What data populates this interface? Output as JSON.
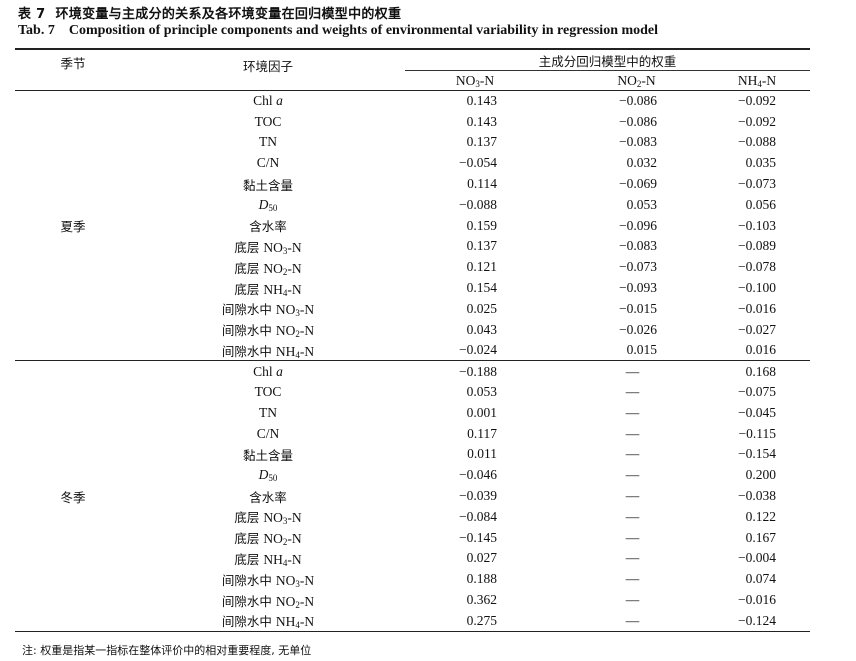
{
  "title_cn": {
    "number": "表 7",
    "text": "环境变量与主成分的关系及各环境变量在回归模型中的权重"
  },
  "title_en": {
    "number": "Tab. 7",
    "text": "Composition of principle components and weights of environmental variability in regression model"
  },
  "header": {
    "season": "季节",
    "factor": "环境因子",
    "group": "主成分回归模型中的权重",
    "columns": [
      [
        {
          "t": "NO"
        },
        {
          "sub": "3"
        },
        {
          "t": "-N"
        }
      ],
      [
        {
          "t": "NO"
        },
        {
          "sub": "2"
        },
        {
          "t": "-N"
        }
      ],
      [
        {
          "t": "NH"
        },
        {
          "sub": "4"
        },
        {
          "t": "-N"
        }
      ]
    ]
  },
  "groups": [
    {
      "season": "夏季",
      "rows": [
        {
          "factor": [
            {
              "t": "Chl "
            },
            {
              "i": "a"
            }
          ],
          "values": [
            "0.143",
            "−0.086",
            "−0.092"
          ]
        },
        {
          "factor": [
            {
              "t": "TOC"
            }
          ],
          "values": [
            "0.143",
            "−0.086",
            "−0.092"
          ]
        },
        {
          "factor": [
            {
              "t": "TN"
            }
          ],
          "values": [
            "0.137",
            "−0.083",
            "−0.088"
          ]
        },
        {
          "factor": [
            {
              "t": "C/N"
            }
          ],
          "values": [
            "−0.054",
            "0.032",
            "0.035"
          ]
        },
        {
          "factor": [
            {
              "cn": "黏土含量"
            }
          ],
          "values": [
            "0.114",
            "−0.069",
            "−0.073"
          ]
        },
        {
          "factor": [
            {
              "i": "D"
            },
            {
              "sub": "50"
            }
          ],
          "values": [
            "−0.088",
            "0.053",
            "0.056"
          ]
        },
        {
          "factor": [
            {
              "cn": "含水率"
            }
          ],
          "values": [
            "0.159",
            "−0.096",
            "−0.103"
          ]
        },
        {
          "factor": [
            {
              "cn": "底层 "
            },
            {
              "t": "NO"
            },
            {
              "sub": "3"
            },
            {
              "t": "-N"
            }
          ],
          "values": [
            "0.137",
            "−0.083",
            "−0.089"
          ]
        },
        {
          "factor": [
            {
              "cn": "底层 "
            },
            {
              "t": "NO"
            },
            {
              "sub": "2"
            },
            {
              "t": "-N"
            }
          ],
          "values": [
            "0.121",
            "−0.073",
            "−0.078"
          ]
        },
        {
          "factor": [
            {
              "cn": "底层 "
            },
            {
              "t": "NH"
            },
            {
              "sub": "4"
            },
            {
              "t": "-N"
            }
          ],
          "values": [
            "0.154",
            "−0.093",
            "−0.100"
          ]
        },
        {
          "factor": [
            {
              "cn": "间隙水中 "
            },
            {
              "t": "NO"
            },
            {
              "sub": "3"
            },
            {
              "t": "-N"
            }
          ],
          "values": [
            "0.025",
            "−0.015",
            "−0.016"
          ]
        },
        {
          "factor": [
            {
              "cn": "间隙水中 "
            },
            {
              "t": "NO"
            },
            {
              "sub": "2"
            },
            {
              "t": "-N"
            }
          ],
          "values": [
            "0.043",
            "−0.026",
            "−0.027"
          ]
        },
        {
          "factor": [
            {
              "cn": "间隙水中 "
            },
            {
              "t": "NH"
            },
            {
              "sub": "4"
            },
            {
              "t": "-N"
            }
          ],
          "values": [
            "−0.024",
            "0.015",
            "0.016"
          ]
        }
      ]
    },
    {
      "season": "冬季",
      "rows": [
        {
          "factor": [
            {
              "t": "Chl "
            },
            {
              "i": "a"
            }
          ],
          "values": [
            "−0.188",
            "—",
            "0.168"
          ]
        },
        {
          "factor": [
            {
              "t": "TOC"
            }
          ],
          "values": [
            "0.053",
            "—",
            "−0.075"
          ]
        },
        {
          "factor": [
            {
              "t": "TN"
            }
          ],
          "values": [
            "0.001",
            "—",
            "−0.045"
          ]
        },
        {
          "factor": [
            {
              "t": "C/N"
            }
          ],
          "values": [
            "0.117",
            "—",
            "−0.115"
          ]
        },
        {
          "factor": [
            {
              "cn": "黏土含量"
            }
          ],
          "values": [
            "0.011",
            "—",
            "−0.154"
          ]
        },
        {
          "factor": [
            {
              "i": "D"
            },
            {
              "sub": "50"
            }
          ],
          "values": [
            "−0.046",
            "—",
            "0.200"
          ]
        },
        {
          "factor": [
            {
              "cn": "含水率"
            }
          ],
          "values": [
            "−0.039",
            "—",
            "−0.038"
          ]
        },
        {
          "factor": [
            {
              "cn": "底层 "
            },
            {
              "t": "NO"
            },
            {
              "sub": "3"
            },
            {
              "t": "-N"
            }
          ],
          "values": [
            "−0.084",
            "—",
            "0.122"
          ]
        },
        {
          "factor": [
            {
              "cn": "底层 "
            },
            {
              "t": "NO"
            },
            {
              "sub": "2"
            },
            {
              "t": "-N"
            }
          ],
          "values": [
            "−0.145",
            "—",
            "0.167"
          ]
        },
        {
          "factor": [
            {
              "cn": "底层 "
            },
            {
              "t": "NH"
            },
            {
              "sub": "4"
            },
            {
              "t": "-N"
            }
          ],
          "values": [
            "0.027",
            "—",
            "−0.004"
          ]
        },
        {
          "factor": [
            {
              "cn": "间隙水中 "
            },
            {
              "t": "NO"
            },
            {
              "sub": "3"
            },
            {
              "t": "-N"
            }
          ],
          "values": [
            "0.188",
            "—",
            "0.074"
          ]
        },
        {
          "factor": [
            {
              "cn": "间隙水中 "
            },
            {
              "t": "NO"
            },
            {
              "sub": "2"
            },
            {
              "t": "-N"
            }
          ],
          "values": [
            "0.362",
            "—",
            "−0.016"
          ]
        },
        {
          "factor": [
            {
              "cn": "间隙水中 "
            },
            {
              "t": "NH"
            },
            {
              "sub": "4"
            },
            {
              "t": "-N"
            }
          ],
          "values": [
            "0.275",
            "—",
            "−0.124"
          ]
        }
      ]
    }
  ],
  "note": "注: 权重是指某一指标在整体评价中的相对重要程度, 无单位"
}
